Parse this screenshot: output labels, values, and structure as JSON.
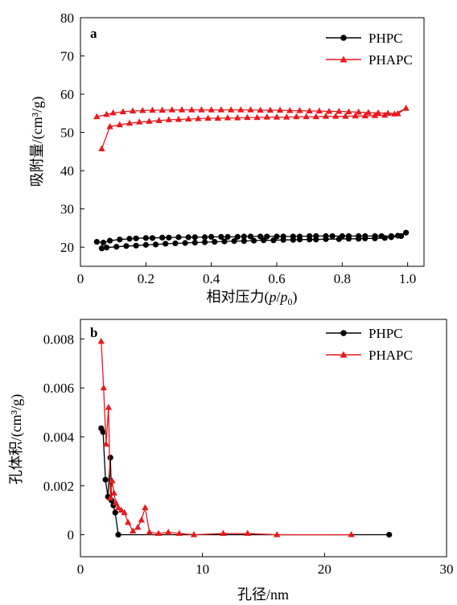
{
  "chart_data": [
    {
      "type": "line",
      "panel_label": "a",
      "xlabel": "相对压力(p/p0)",
      "xlabel_parts": [
        "相对压力(",
        "p",
        "/",
        "p",
        "0",
        ")"
      ],
      "ylabel": "吸附量/(cm³/g)",
      "xlim": [
        0,
        1.05
      ],
      "ylim": [
        15,
        80
      ],
      "xticks": [
        "0",
        "0.2",
        "0.4",
        "0.6",
        "0.8",
        "1.0"
      ],
      "xtick_values": [
        0,
        0.2,
        0.4,
        0.6,
        0.8,
        1.0
      ],
      "yticks": [
        "20",
        "30",
        "40",
        "50",
        "60",
        "70",
        "80"
      ],
      "ytick_values": [
        20,
        30,
        40,
        50,
        60,
        70,
        80
      ],
      "grid": false,
      "legend_position": "top-right",
      "series": [
        {
          "name": "PHPC",
          "color": "#000000",
          "marker": "circle",
          "x": [
            0.05,
            0.07,
            0.09,
            0.12,
            0.15,
            0.17,
            0.2,
            0.22,
            0.25,
            0.27,
            0.3,
            0.33,
            0.35,
            0.38,
            0.4,
            0.43,
            0.45,
            0.48,
            0.5,
            0.52,
            0.55,
            0.57,
            0.6,
            0.62,
            0.65,
            0.67,
            0.7,
            0.72,
            0.75,
            0.77,
            0.8,
            0.82,
            0.85,
            0.87,
            0.9,
            0.92,
            0.95,
            0.97,
            0.995,
            0.98,
            0.95,
            0.93,
            0.9,
            0.87,
            0.85,
            0.82,
            0.79,
            0.75,
            0.72,
            0.7,
            0.67,
            0.65,
            0.62,
            0.59,
            0.56,
            0.53,
            0.5,
            0.47,
            0.44,
            0.41,
            0.38,
            0.35,
            0.32,
            0.29,
            0.26,
            0.23,
            0.2,
            0.17,
            0.14,
            0.11,
            0.08,
            0.065
          ],
          "y": [
            21.4,
            21.2,
            21.7,
            22.0,
            22.2,
            22.3,
            22.4,
            22.4,
            22.5,
            22.5,
            22.6,
            22.6,
            22.6,
            22.6,
            22.7,
            22.7,
            22.7,
            22.7,
            22.8,
            22.8,
            22.8,
            22.8,
            22.8,
            22.8,
            22.8,
            22.8,
            22.9,
            22.9,
            22.9,
            22.9,
            22.9,
            22.9,
            22.9,
            22.9,
            22.9,
            22.9,
            22.9,
            23.0,
            23.8,
            22.9,
            22.6,
            22.4,
            22.3,
            22.3,
            22.2,
            22.2,
            22.1,
            22.1,
            22.0,
            22.0,
            22.0,
            21.9,
            21.9,
            21.8,
            21.8,
            21.7,
            21.6,
            21.6,
            21.5,
            21.4,
            21.3,
            21.2,
            21.1,
            21.0,
            20.9,
            20.7,
            20.6,
            20.4,
            20.3,
            20.1,
            19.9,
            19.7
          ]
        },
        {
          "name": "PHAPC",
          "color": "#e8191e",
          "marker": "triangle",
          "x": [
            0.065,
            0.09,
            0.12,
            0.15,
            0.18,
            0.21,
            0.24,
            0.27,
            0.3,
            0.33,
            0.36,
            0.39,
            0.42,
            0.45,
            0.48,
            0.51,
            0.54,
            0.57,
            0.6,
            0.63,
            0.66,
            0.69,
            0.72,
            0.75,
            0.78,
            0.81,
            0.84,
            0.87,
            0.9,
            0.93,
            0.96,
            0.995,
            0.97,
            0.94,
            0.91,
            0.88,
            0.85,
            0.82,
            0.79,
            0.76,
            0.73,
            0.7,
            0.67,
            0.64,
            0.61,
            0.58,
            0.55,
            0.52,
            0.49,
            0.46,
            0.43,
            0.4,
            0.37,
            0.34,
            0.31,
            0.28,
            0.25,
            0.22,
            0.19,
            0.16,
            0.13,
            0.1,
            0.08,
            0.05
          ],
          "y": [
            45.7,
            51.5,
            52.0,
            52.4,
            52.7,
            52.9,
            53.1,
            53.3,
            53.4,
            53.5,
            53.6,
            53.7,
            53.7,
            53.8,
            53.8,
            53.9,
            53.9,
            54.0,
            54.0,
            54.0,
            54.1,
            54.1,
            54.1,
            54.2,
            54.2,
            54.2,
            54.3,
            54.3,
            54.4,
            54.5,
            54.8,
            56.3,
            54.9,
            55.0,
            55.1,
            55.2,
            55.3,
            55.4,
            55.5,
            55.5,
            55.6,
            55.6,
            55.7,
            55.7,
            55.8,
            55.8,
            55.8,
            55.9,
            55.9,
            55.9,
            55.9,
            55.9,
            55.9,
            55.9,
            55.9,
            55.9,
            55.8,
            55.8,
            55.7,
            55.6,
            55.4,
            55.1,
            54.7,
            54.1
          ]
        }
      ]
    },
    {
      "type": "line",
      "panel_label": "b",
      "xlabel": "孔径/nm",
      "ylabel": "孔体积/(cm³/g)",
      "xlim": [
        0,
        30
      ],
      "ylim": [
        -0.0009,
        0.0088
      ],
      "xticks": [
        "0",
        "10",
        "20",
        "30"
      ],
      "xtick_values": [
        0,
        10,
        20,
        30
      ],
      "yticks": [
        "0",
        "0.002",
        "0.004",
        "0.006",
        "0.008"
      ],
      "ytick_values": [
        0,
        0.002,
        0.004,
        0.006,
        0.008
      ],
      "grid": false,
      "legend_position": "top-right",
      "series": [
        {
          "name": "PHPC",
          "color": "#000000",
          "marker": "circle",
          "x": [
            1.7,
            1.85,
            2.05,
            2.25,
            2.45,
            2.55,
            2.7,
            2.85,
            3.1,
            25.3
          ],
          "y": [
            0.00435,
            0.0042,
            0.00225,
            0.00155,
            0.00315,
            0.0014,
            0.0012,
            0.0009,
            0.0,
            0.0
          ]
        },
        {
          "name": "PHAPC",
          "color": "#e8191e",
          "marker": "triangle",
          "x": [
            1.7,
            1.9,
            2.1,
            2.3,
            2.45,
            2.6,
            2.75,
            2.9,
            3.1,
            3.35,
            3.6,
            3.9,
            4.3,
            4.7,
            5.0,
            5.3,
            5.65,
            6.4,
            7.2,
            8.1,
            9.3,
            11.7,
            13.7,
            16.1,
            22.2
          ],
          "y": [
            0.0079,
            0.006,
            0.0037,
            0.0052,
            0.0015,
            0.0022,
            0.0017,
            0.0013,
            0.0011,
            0.001,
            0.0009,
            0.0005,
            0.00015,
            0.0003,
            0.0006,
            0.0011,
            0.0001,
            5e-05,
            0.0001,
            5e-05,
            0.0,
            5e-05,
            5e-05,
            0.0,
            0.0
          ]
        }
      ]
    }
  ]
}
